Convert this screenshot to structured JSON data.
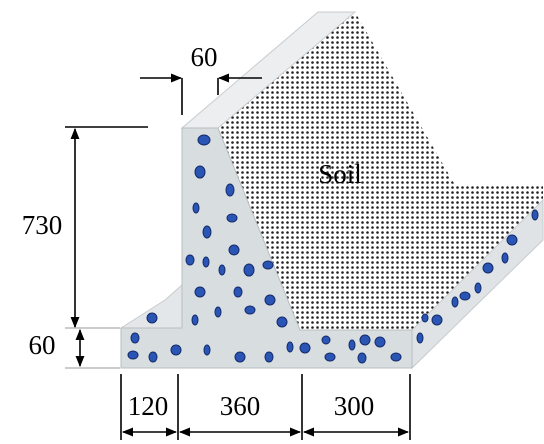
{
  "dimensions": {
    "stem_top_width": "60",
    "stem_height": "730",
    "base_thickness": "60",
    "toe_width": "120",
    "stem_base_width": "360",
    "heel_width": "300"
  },
  "soil_label": "Soil"
}
